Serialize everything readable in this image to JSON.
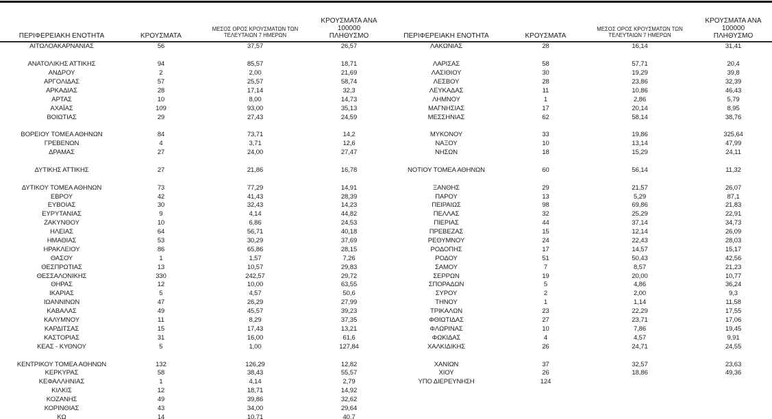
{
  "header": {
    "region": "ΠΕΡΙΦΕΡΕΙΑΚΗ ΕΝΟΤΗΤΑ",
    "cases": "ΚΡΟΥΣΜΑΤΑ",
    "avg7_line1": "ΜΕΣΟΣ ΟΡΟΣ ΚΡΟΥΣΜΑΤΩΝ ΤΩΝ",
    "avg7_line2": "ΤΕΛΕΥΤΑΙΩΝ 7 ΗΜΕΡΩΝ",
    "per100k_line1": "ΚΡΟΥΣΜΑΤΑ ΑΝΑ 100000",
    "per100k_line2": "ΠΛΗΘΥΣΜΟ"
  },
  "tables": [
    {
      "name": "left",
      "rows": [
        [
          "ΑΙΤΩΛΟΑΚΑΡΝΑΝΙΑΣ",
          "56",
          "37,57",
          "26,57"
        ],
        null,
        [
          "ΑΝΑΤΟΛΙΚΗΣ ΑΤΤΙΚΗΣ",
          "94",
          "85,57",
          "18,71"
        ],
        [
          "ΑΝΔΡΟΥ",
          "2",
          "2,00",
          "21,69"
        ],
        [
          "ΑΡΓΟΛΙΔΑΣ",
          "57",
          "25,57",
          "58,74"
        ],
        [
          "ΑΡΚΑΔΙΑΣ",
          "28",
          "17,14",
          "32,3"
        ],
        [
          "ΑΡΤΑΣ",
          "10",
          "8,00",
          "14,73"
        ],
        [
          "ΑΧΑΪΑΣ",
          "109",
          "93,00",
          "35,13"
        ],
        [
          "ΒΟΙΩΤΙΑΣ",
          "29",
          "27,43",
          "24,59"
        ],
        null,
        [
          "ΒΟΡΕΙΟΥ ΤΟΜΕΑ ΑΘΗΝΩΝ",
          "84",
          "73,71",
          "14,2"
        ],
        [
          "ΓΡΕΒΕΝΩΝ",
          "4",
          "3,71",
          "12,6"
        ],
        [
          "ΔΡΑΜΑΣ",
          "27",
          "24,00",
          "27,47"
        ],
        null,
        [
          "ΔΥΤΙΚΗΣ ΑΤΤΙΚΗΣ",
          "27",
          "21,86",
          "16,78"
        ],
        null,
        [
          "ΔΥΤΙΚΟΥ ΤΟΜΕΑ ΑΘΗΝΩΝ",
          "73",
          "77,29",
          "14,91"
        ],
        [
          "ΕΒΡΟΥ",
          "42",
          "41,43",
          "28,39"
        ],
        [
          "ΕΥΒΟΙΑΣ",
          "30",
          "32,43",
          "14,23"
        ],
        [
          "ΕΥΡΥΤΑΝΙΑΣ",
          "9",
          "4,14",
          "44,82"
        ],
        [
          "ΖΑΚΥΝΘΟΥ",
          "10",
          "6,86",
          "24,53"
        ],
        [
          "ΗΛΕΙΑΣ",
          "64",
          "56,71",
          "40,18"
        ],
        [
          "ΗΜΑΘΙΑΣ",
          "53",
          "30,29",
          "37,69"
        ],
        [
          "ΗΡΑΚΛΕΙΟΥ",
          "86",
          "65,86",
          "28,15"
        ],
        [
          "ΘΑΣΟΥ",
          "1",
          "1,57",
          "7,26"
        ],
        [
          "ΘΕΣΠΡΩΤΙΑΣ",
          "13",
          "10,57",
          "29,83"
        ],
        [
          "ΘΕΣΣΑΛΟΝΙΚΗΣ",
          "330",
          "242,57",
          "29,72"
        ],
        [
          "ΘΗΡΑΣ",
          "12",
          "10,00",
          "63,55"
        ],
        [
          "ΙΚΑΡΙΑΣ",
          "5",
          "4,57",
          "50,6"
        ],
        [
          "ΙΩΑΝΝΙΝΩΝ",
          "47",
          "26,29",
          "27,99"
        ],
        [
          "ΚΑΒΑΛΑΣ",
          "49",
          "45,57",
          "39,23"
        ],
        [
          "ΚΑΛΥΜΝΟΥ",
          "11",
          "8,29",
          "37,35"
        ],
        [
          "ΚΑΡΔΙΤΣΑΣ",
          "15",
          "17,43",
          "13,21"
        ],
        [
          "ΚΑΣΤΟΡΙΑΣ",
          "31",
          "16,00",
          "61,6"
        ],
        [
          "ΚΕΑΣ - ΚΥΘΝΟΥ",
          "5",
          "1,00",
          "127,84"
        ],
        null,
        [
          "ΚΕΝΤΡΙΚΟΥ ΤΟΜΕΑ ΑΘΗΝΩΝ",
          "132",
          "126,29",
          "12,82"
        ],
        [
          "ΚΕΡΚΥΡΑΣ",
          "58",
          "38,43",
          "55,57"
        ],
        [
          "ΚΕΦΑΛΛΗΝΙΑΣ",
          "1",
          "4,14",
          "2,79"
        ],
        [
          "ΚΙΛΚΙΣ",
          "12",
          "18,71",
          "14,92"
        ],
        [
          "ΚΟΖΑΝΗΣ",
          "49",
          "39,86",
          "32,62"
        ],
        [
          "ΚΟΡΙΝΘΙΑΣ",
          "43",
          "34,00",
          "29,64"
        ],
        [
          "ΚΩ",
          "14",
          "10,71",
          "40,7"
        ]
      ]
    },
    {
      "name": "right",
      "rows": [
        [
          "ΛΑΚΩΝΙΑΣ",
          "28",
          "16,14",
          "31,41"
        ],
        null,
        [
          "ΛΑΡΙΣΑΣ",
          "58",
          "57,71",
          "20,4"
        ],
        [
          "ΛΑΣΙΘΙΟΥ",
          "30",
          "19,29",
          "39,8"
        ],
        [
          "ΛΕΣΒΟΥ",
          "28",
          "23,86",
          "32,39"
        ],
        [
          "ΛΕΥΚΑΔΑΣ",
          "11",
          "10,86",
          "46,43"
        ],
        [
          "ΛΗΜΝΟΥ",
          "1",
          "2,86",
          "5,79"
        ],
        [
          "ΜΑΓΝΗΣΙΑΣ",
          "17",
          "20,14",
          "8,95"
        ],
        [
          "ΜΕΣΣΗΝΙΑΣ",
          "62",
          "58,14",
          "38,76"
        ],
        null,
        [
          "ΜΥΚΟΝΟΥ",
          "33",
          "19,86",
          "325,64"
        ],
        [
          "ΝΑΞΟΥ",
          "10",
          "13,14",
          "47,99"
        ],
        [
          "ΝΗΣΩΝ",
          "18",
          "15,29",
          "24,11"
        ],
        null,
        [
          "ΝΟΤΙΟΥ ΤΟΜΕΑ ΑΘΗΝΩΝ",
          "60",
          "56,14",
          "11,32"
        ],
        null,
        [
          "ΞΑΝΘΗΣ",
          "29",
          "21,57",
          "26,07"
        ],
        [
          "ΠΑΡΟΥ",
          "13",
          "5,29",
          "87,1"
        ],
        [
          "ΠΕΙΡΑΙΩΣ",
          "98",
          "69,86",
          "21,83"
        ],
        [
          "ΠΕΛΛΑΣ",
          "32",
          "25,29",
          "22,91"
        ],
        [
          "ΠΙΕΡΙΑΣ",
          "44",
          "37,14",
          "34,73"
        ],
        [
          "ΠΡΕΒΕΖΑΣ",
          "15",
          "12,14",
          "26,09"
        ],
        [
          "ΡΕΘΥΜΝΟΥ",
          "24",
          "22,43",
          "28,03"
        ],
        [
          "ΡΟΔΟΠΗΣ",
          "17",
          "14,57",
          "15,17"
        ],
        [
          "ΡΟΔΟΥ",
          "51",
          "50,43",
          "42,56"
        ],
        [
          "ΣΑΜΟΥ",
          "7",
          "8,57",
          "21,23"
        ],
        [
          "ΣΕΡΡΩΝ",
          "19",
          "20,00",
          "10,77"
        ],
        [
          "ΣΠΟΡΑΔΩΝ",
          "5",
          "4,86",
          "36,24"
        ],
        [
          "ΣΥΡΟΥ",
          "2",
          "2,00",
          "9,3"
        ],
        [
          "ΤΗΝΟΥ",
          "1",
          "1,14",
          "11,58"
        ],
        [
          "ΤΡΙΚΑΛΩΝ",
          "23",
          "22,29",
          "17,55"
        ],
        [
          "ΦΘΙΩΤΙΔΑΣ",
          "27",
          "23,71",
          "17,06"
        ],
        [
          "ΦΛΩΡΙΝΑΣ",
          "10",
          "7,86",
          "19,45"
        ],
        [
          "ΦΩΚΙΔΑΣ",
          "4",
          "4,57",
          "9,91"
        ],
        [
          "ΧΑΛΚΙΔΙΚΗΣ",
          "26",
          "24,71",
          "24,55"
        ],
        null,
        [
          "ΧΑΝΙΩΝ",
          "37",
          "32,57",
          "23,63"
        ],
        [
          "ΧΙΟΥ",
          "26",
          "18,86",
          "49,36"
        ],
        [
          "ΥΠΟ ΔΙΕΡΕΥΝΗΣΗ",
          "124",
          "",
          ""
        ],
        null,
        null,
        null,
        null
      ]
    }
  ]
}
